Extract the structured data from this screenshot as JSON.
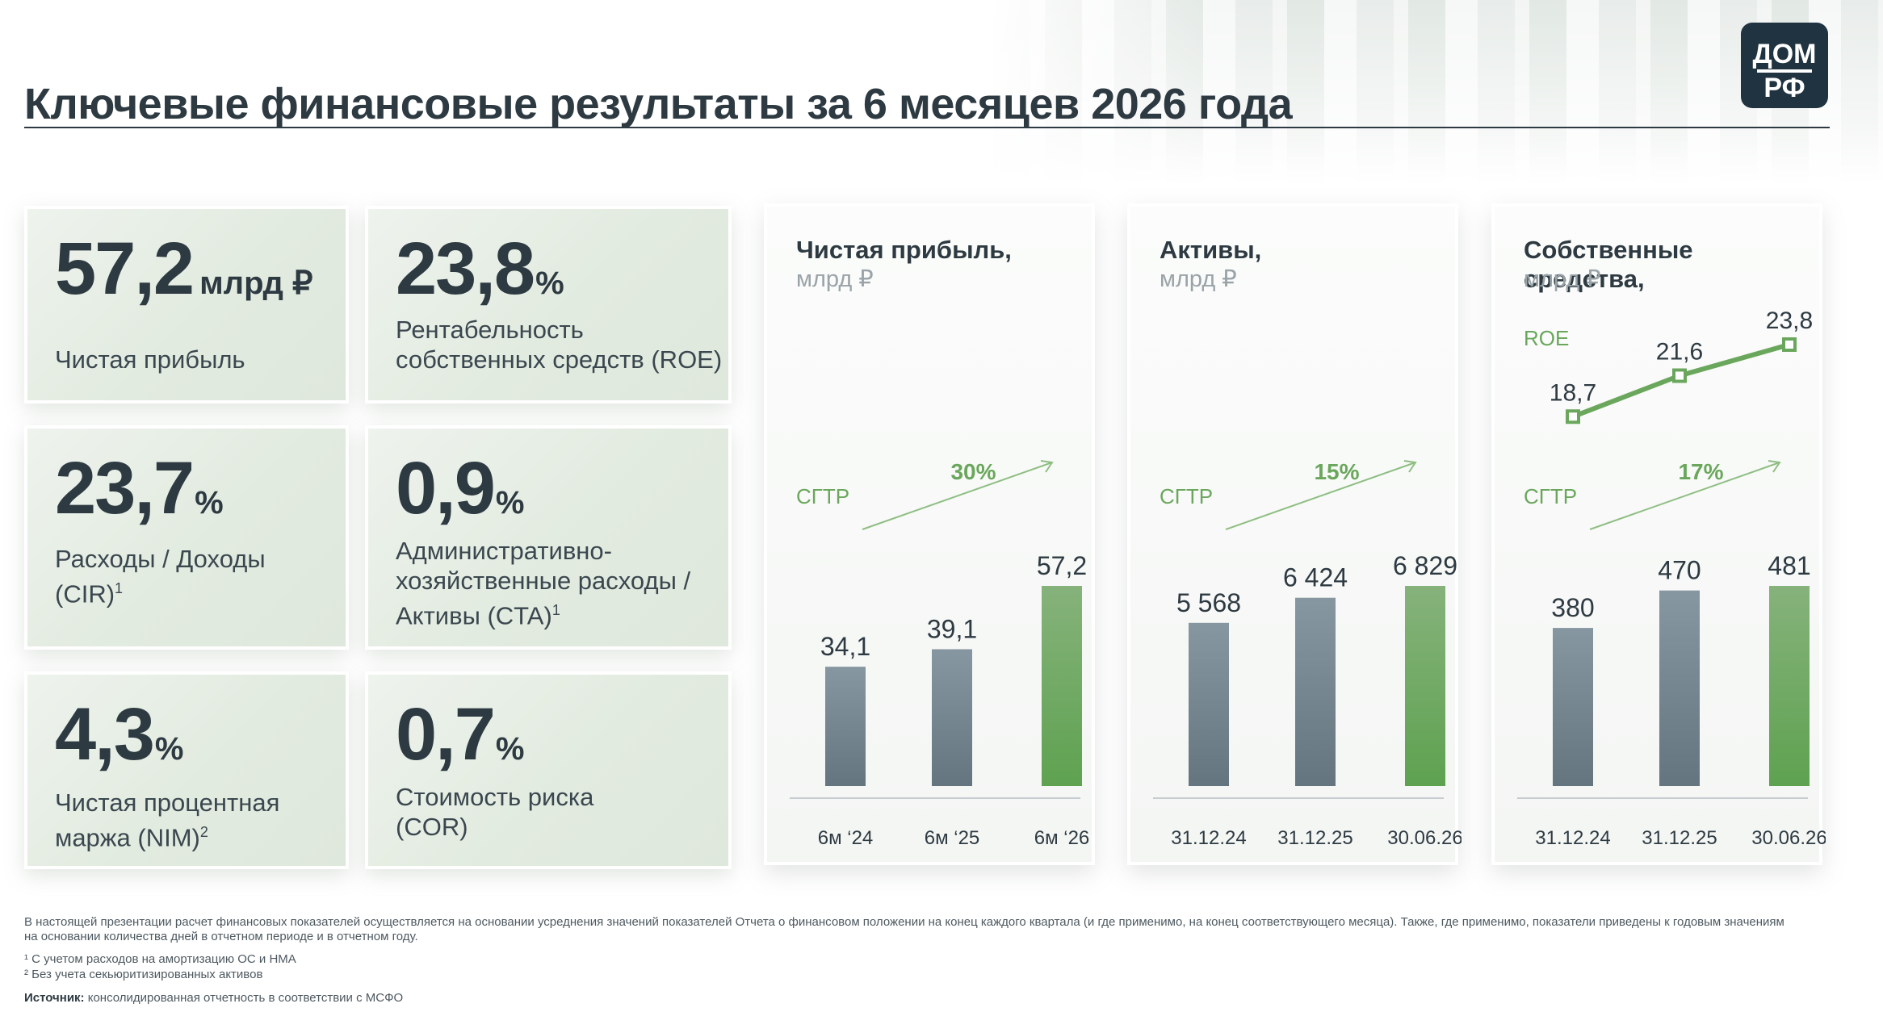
{
  "title": "Ключевые финансовые результаты за 6 месяцев 2026 года",
  "logo": {
    "line1": "ДОМ",
    "line2": "РФ"
  },
  "kpis": [
    {
      "value": "57,2",
      "unit": "млрд ₽",
      "label": "Чистая прибыль"
    },
    {
      "value": "23,8",
      "unit": "%",
      "label": "Рентабельность собственных средств (ROE)"
    },
    {
      "value": "23,7",
      "unit": "%",
      "label": "Расходы / Доходы (CIR)",
      "sup": "1"
    },
    {
      "value": "0,9",
      "unit": "%",
      "label": "Административно-хозяйственные расходы / Активы (CTA)",
      "sup": "1"
    },
    {
      "value": "4,3",
      "unit": "%",
      "label": "Чистая процентная маржа (NIM)",
      "sup": "2"
    },
    {
      "value": "0,7",
      "unit": "%",
      "label": "Стоимость риска (COR)"
    }
  ],
  "chart_data": [
    {
      "type": "bar",
      "title": "Чистая прибыль,",
      "unit": "млрд ₽",
      "categories": [
        "6м ‘24",
        "6м ‘25",
        "6м ‘26"
      ],
      "values": [
        34.1,
        39.1,
        57.2
      ],
      "value_labels": [
        "34,1",
        "39,1",
        "57,2"
      ],
      "cagr_label": "СГТР",
      "cagr_value": "30%",
      "colors": [
        "#6f818c",
        "#6f818c",
        "#6aa75c"
      ]
    },
    {
      "type": "bar",
      "title": "Активы,",
      "unit": "млрд ₽",
      "categories": [
        "31.12.24",
        "31.12.25",
        "30.06.26"
      ],
      "values": [
        5568,
        6424,
        6829
      ],
      "value_labels": [
        "5 568",
        "6 424",
        "6 829"
      ],
      "cagr_label": "СГТР",
      "cagr_value": "15%",
      "colors": [
        "#6f818c",
        "#6f818c",
        "#6aa75c"
      ]
    },
    {
      "type": "bar",
      "title": "Собственные средства,",
      "unit": "млрд ₽",
      "categories": [
        "31.12.24",
        "31.12.25",
        "30.06.26"
      ],
      "values": [
        380,
        470,
        481
      ],
      "value_labels": [
        "380",
        "470",
        "481"
      ],
      "cagr_label": "СГТР",
      "cagr_value": "17%",
      "colors": [
        "#6f818c",
        "#6f818c",
        "#6aa75c"
      ],
      "line_series": {
        "name": "ROE",
        "values": [
          18.7,
          21.6,
          23.8
        ],
        "value_labels": [
          "18,7",
          "21,6",
          "23,8"
        ]
      }
    }
  ],
  "footnotes": {
    "main": "В настоящей презентации расчет финансовых показателей осуществляется на основании усреднения значений показателей Отчета о финансовом положении на конец каждого квартала (и где применимо, на конец соответствующего месяца). Также, где применимо, показатели приведены к годовым значениям на основании количества дней в отчетном периоде и в отчетном году.",
    "note1": "¹  С учетом расходов на амортизацию ОС и НМА",
    "note2": "²  Без учета секьюритизированных активов",
    "source_label": "Источник:",
    "source_text": " консолидированная отчетность в соответствии с МСФО"
  },
  "colors": {
    "accent_green": "#6aa75c",
    "bar_gray": "#6f818c",
    "text_dark": "#2e3a42",
    "logo_bg": "#1f3340"
  }
}
